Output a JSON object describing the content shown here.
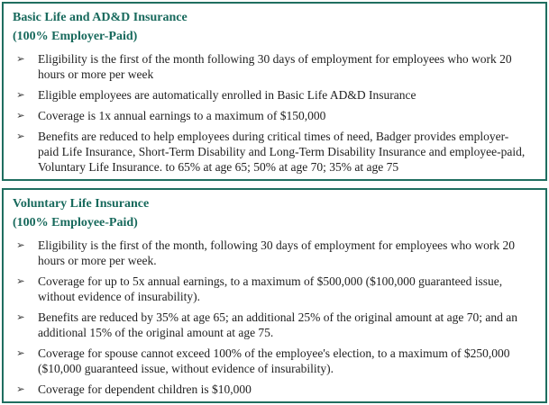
{
  "theme": {
    "accent": "#1f6e60",
    "heading_color": "#17695c",
    "text_color": "#1f1f1f",
    "bullet_color": "#3a3a3a"
  },
  "bullet_glyph": "➢",
  "sections": [
    {
      "title": "Basic Life and AD&D Insurance",
      "subtitle": "(100% Employer-Paid)",
      "bullets": [
        "Eligibility is the first of the month following 30 days of employment for employees who work 20 hours or more per week",
        "Eligible employees are automatically enrolled in Basic Life AD&D Insurance",
        "Coverage is 1x annual earnings to a maximum of $150,000",
        "Benefits are reduced to help employees during critical times of need, Badger provides employer-paid Life Insurance, Short-Term Disability and Long-Term Disability Insurance and employee-paid, Voluntary Life Insurance. to 65% at age 65; 50% at age 70; 35% at age 75"
      ]
    },
    {
      "title": "Voluntary Life Insurance",
      "subtitle": "(100% Employee-Paid)",
      "bullets": [
        "Eligibility is the first of the month, following 30 days of employment for employees who work 20 hours or more per week.",
        "Coverage for up to 5x annual earnings, to a maximum of $500,000 ($100,000 guaranteed issue, without evidence of insurability).",
        "Benefits are reduced by 35% at age 65; an additional 25% of the original amount at age 70; and an additional 15% of the original amount at age 75.",
        "Coverage for spouse cannot exceed 100% of the employee's election, to a maximum of $250,000 ($10,000 guaranteed issue, without evidence of insurability).",
        "Coverage for dependent children is $10,000"
      ]
    }
  ]
}
